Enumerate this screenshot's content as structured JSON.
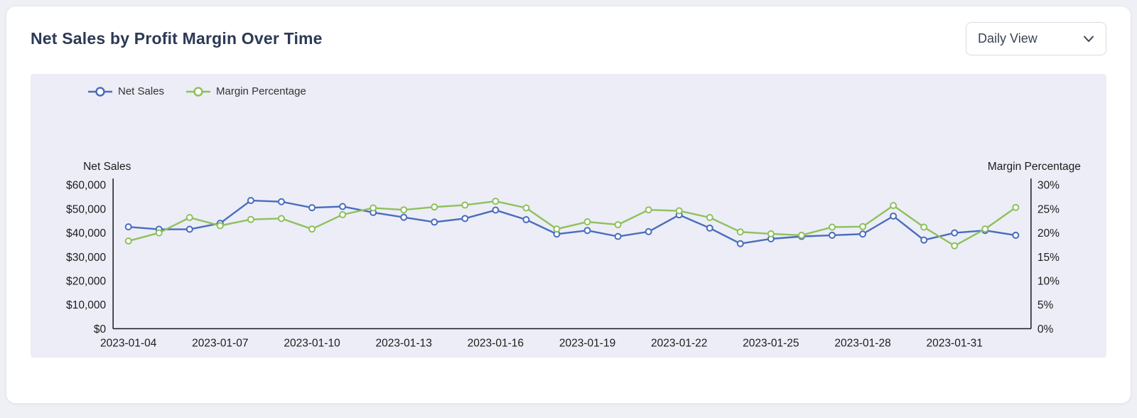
{
  "header": {
    "title": "Net Sales by Profit Margin Over Time",
    "view_selector": {
      "value": "Daily View"
    }
  },
  "chart_data": {
    "type": "line",
    "title": "Net Sales by Profit Margin Over Time",
    "legend_position": "top-left",
    "grid": false,
    "x": [
      "2023-01-04",
      "2023-01-05",
      "2023-01-06",
      "2023-01-07",
      "2023-01-08",
      "2023-01-09",
      "2023-01-10",
      "2023-01-11",
      "2023-01-12",
      "2023-01-13",
      "2023-01-14",
      "2023-01-15",
      "2023-01-16",
      "2023-01-17",
      "2023-01-18",
      "2023-01-19",
      "2023-01-20",
      "2023-01-21",
      "2023-01-22",
      "2023-01-23",
      "2023-01-24",
      "2023-01-25",
      "2023-01-26",
      "2023-01-27",
      "2023-01-28",
      "2023-01-29",
      "2023-01-30",
      "2023-01-31",
      "2023-02-01",
      "2023-02-02"
    ],
    "x_ticks": [
      "2023-01-04",
      "2023-01-07",
      "2023-01-10",
      "2023-01-13",
      "2023-01-16",
      "2023-01-19",
      "2023-01-22",
      "2023-01-25",
      "2023-01-28",
      "2023-01-31"
    ],
    "left_axis": {
      "label": "Net Sales",
      "min": 0,
      "max": 60000,
      "step": 10000,
      "format": "currency"
    },
    "right_axis": {
      "label": "Margin Percentage",
      "min": 0,
      "max": 30,
      "step": 5,
      "format": "percent"
    },
    "series": [
      {
        "name": "Net Sales",
        "axis": "left",
        "color": "#4a6dbc",
        "values": [
          42500,
          41500,
          41500,
          44000,
          53500,
          53000,
          50500,
          51000,
          48500,
          46500,
          44500,
          46000,
          49500,
          45500,
          39500,
          41000,
          38500,
          40500,
          47500,
          42000,
          35500,
          37500,
          38500,
          39000,
          39500,
          47000,
          37000,
          40000,
          41000,
          39000
        ]
      },
      {
        "name": "Margin Percentage",
        "axis": "right",
        "color": "#8fc05c",
        "values": [
          18.3,
          20.0,
          23.2,
          21.5,
          22.8,
          23.0,
          20.8,
          23.8,
          25.2,
          24.8,
          25.4,
          25.8,
          26.6,
          25.2,
          20.8,
          22.3,
          21.7,
          24.8,
          24.6,
          23.2,
          20.2,
          19.8,
          19.5,
          21.2,
          21.3,
          25.7,
          21.2,
          17.3,
          20.8,
          25.3
        ]
      }
    ]
  }
}
